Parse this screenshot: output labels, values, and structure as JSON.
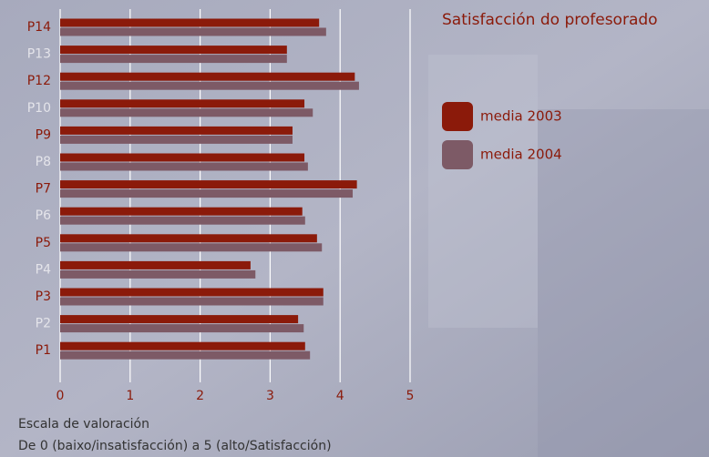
{
  "chart_data": {
    "type": "hbar",
    "title": "Satisfacción do profesorado",
    "categories": [
      "P14",
      "P13",
      "P12",
      "P10",
      "P9",
      "P8",
      "P7",
      "P6",
      "P5",
      "P4",
      "P3",
      "P2",
      "P1"
    ],
    "series": [
      {
        "name": "media 2003",
        "color": "#8b1a0a",
        "values": [
          3.7,
          3.24,
          4.21,
          3.49,
          3.32,
          3.49,
          4.24,
          3.46,
          3.67,
          2.72,
          3.76,
          3.4,
          3.5
        ]
      },
      {
        "name": "media 2004",
        "color": "#7d5a66",
        "values": [
          3.8,
          3.24,
          4.27,
          3.61,
          3.32,
          3.54,
          4.18,
          3.5,
          3.74,
          2.79,
          3.76,
          3.48,
          3.57
        ]
      }
    ],
    "xlim": [
      0,
      5
    ],
    "xticks": [
      0,
      1,
      2,
      3,
      4,
      5
    ],
    "grid": true,
    "legend": "right",
    "annotations": [
      "Escala de valoración",
      "De 0 (baixo/insatisfacción) a 5 (alto/Satisfacción)"
    ]
  }
}
